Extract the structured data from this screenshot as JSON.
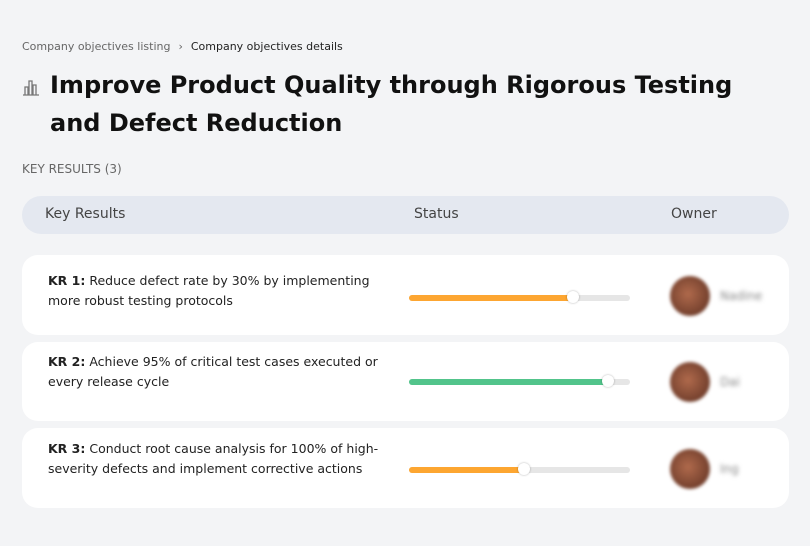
{
  "breadcrumb": {
    "items": [
      "Company objectives listing",
      "Company objectives details"
    ]
  },
  "title": "Improve Product Quality through Rigorous Testing and Defect Reduction",
  "key_results_count": "KEY RESULTS (3)",
  "table": {
    "headers": [
      "Key Results",
      "Status",
      "Owner"
    ]
  },
  "key_results": [
    {
      "label": "KR 1:",
      "text": " Reduce defect rate by 30% by implementing more robust testing protocols",
      "progress": 74,
      "color": "#fda631",
      "owner": "Nadine"
    },
    {
      "label": "KR 2:",
      "text": " Achieve 95% of critical test cases executed or every release cycle",
      "progress": 90,
      "color": "#52c48b",
      "owner": "Dai"
    },
    {
      "label": "KR 3:",
      "text": " Conduct root cause analysis for 100% of high-severity defects and implement corrective actions",
      "progress": 52,
      "color": "#fda631",
      "owner": "Ing"
    }
  ]
}
